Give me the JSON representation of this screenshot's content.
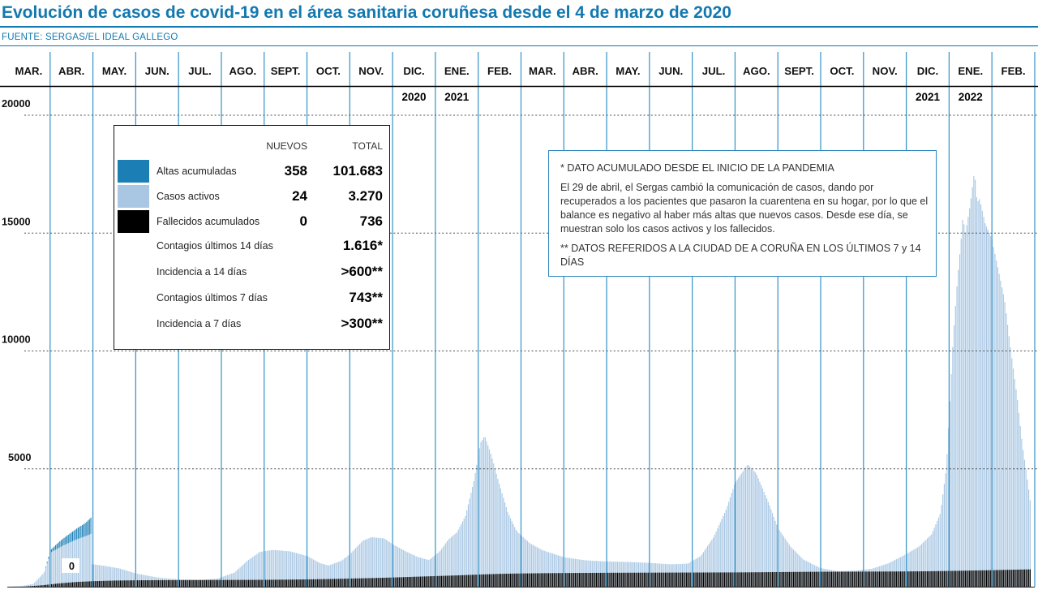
{
  "title": "Evolución de casos de covid-19 en el área sanitaria coruñesa desde el 4 de marzo de 2020",
  "source": "FUENTE: SERGAS/EL IDEAL GALLEGO",
  "colors": {
    "accent_blue": "#1278b0",
    "grid_blue": "#3a96c9",
    "bar_light": "#a9c7e3",
    "bar_dark": "#1b7fb5",
    "bar_black": "#000000",
    "dashed_gray": "#4d4d4d",
    "text_dark": "#111111"
  },
  "axis": {
    "months": [
      "MAR.",
      "ABR.",
      "MAY.",
      "JUN.",
      "JUL.",
      "AGO.",
      "SEPT.",
      "OCT.",
      "NOV.",
      "DIC.",
      "ENE.",
      "FEB.",
      "MAR.",
      "ABR.",
      "MAY.",
      "JUN.",
      "JUL.",
      "AGO.",
      "SEPT.",
      "OCT.",
      "NOV.",
      "DIC.",
      "ENE.",
      "FEB."
    ],
    "years": [
      {
        "label": "2020",
        "col": 9
      },
      {
        "label": "2021",
        "col": 10
      },
      {
        "label": "2021",
        "col": 21
      },
      {
        "label": "2022",
        "col": 22
      }
    ],
    "y_ticks": [
      20000,
      15000,
      10000,
      5000,
      0
    ]
  },
  "legend": {
    "headers": {
      "nuevos": "NUEVOS",
      "total": "TOTAL"
    },
    "items": [
      {
        "label": "Altas acumuladas",
        "swatch": "bar_dark",
        "nuevos": "358",
        "total": "101.683"
      },
      {
        "label": "Casos activos",
        "swatch": "bar_light",
        "nuevos": "24",
        "total": "3.270"
      },
      {
        "label": "Fallecidos acumulados",
        "swatch": "bar_black",
        "nuevos": "0",
        "total": "736"
      }
    ],
    "extra_rows": [
      {
        "label": "Contagios últimos 14 días",
        "value": "1.616*"
      },
      {
        "label": "Incidencia a 14 días",
        "value": ">600**"
      },
      {
        "label": "Contagios últimos 7 días",
        "value": "743**"
      },
      {
        "label": "Incidencia a 7 días",
        "value": ">300**"
      }
    ]
  },
  "note": {
    "line1": "* DATO ACUMULADO DESDE EL INICIO DE LA PANDEMIA",
    "paragraph": "El 29 de abril, el Sergas cambió la comunicación de casos, dando por recuperados a los pacientes que pasaron la cuarentena en su hogar, por lo que el balance es negativo al haber más altas que nuevos casos. Desde ese día, se muestran solo los casos activos y los fallecidos.",
    "line2": "** DATOS REFERIDOS A LA CIUDAD DE A CORUÑA EN LOS ÚLTIMOS 7 y 14 DÍAS"
  },
  "chart_data": {
    "type": "bar",
    "title": "Evolución de casos de covid-19 en el área sanitaria coruñesa desde el 4 de marzo de 2020",
    "x_unit": "días (MAR. 2020 - FEB. 2022, un bar por día)",
    "ylim": [
      0,
      21000
    ],
    "y_ticks": [
      20000,
      15000,
      10000,
      5000,
      0
    ],
    "grid": "dashed-horizontal, solid-vertical-monthly",
    "series": [
      {
        "name": "Casos activos",
        "color_key": "bar_light",
        "keyframes_month_value": [
          [
            0,
            0
          ],
          [
            0.3,
            20
          ],
          [
            0.6,
            120
          ],
          [
            0.85,
            600
          ],
          [
            1,
            1450
          ],
          [
            1.3,
            1750
          ],
          [
            1.6,
            2000
          ],
          [
            1.9,
            2200
          ],
          [
            1.96,
            2260
          ],
          [
            1.97,
            960
          ],
          [
            2.3,
            870
          ],
          [
            2.6,
            780
          ],
          [
            3,
            560
          ],
          [
            3.5,
            390
          ],
          [
            4,
            310
          ],
          [
            4.5,
            295
          ],
          [
            4.9,
            340
          ],
          [
            5.3,
            600
          ],
          [
            5.6,
            1100
          ],
          [
            5.9,
            1480
          ],
          [
            6.2,
            1560
          ],
          [
            6.6,
            1500
          ],
          [
            7,
            1300
          ],
          [
            7.3,
            1000
          ],
          [
            7.5,
            900
          ],
          [
            7.8,
            1100
          ],
          [
            8,
            1380
          ],
          [
            8.3,
            1950
          ],
          [
            8.5,
            2100
          ],
          [
            8.8,
            2050
          ],
          [
            9,
            1800
          ],
          [
            9.3,
            1500
          ],
          [
            9.6,
            1250
          ],
          [
            9.85,
            1130
          ],
          [
            10.1,
            1500
          ],
          [
            10.3,
            2000
          ],
          [
            10.5,
            2300
          ],
          [
            10.7,
            3000
          ],
          [
            10.9,
            4500
          ],
          [
            11.05,
            6100
          ],
          [
            11.15,
            6400
          ],
          [
            11.3,
            5600
          ],
          [
            11.5,
            4300
          ],
          [
            11.7,
            3100
          ],
          [
            11.9,
            2350
          ],
          [
            12.2,
            1850
          ],
          [
            12.5,
            1550
          ],
          [
            13,
            1250
          ],
          [
            13.5,
            1120
          ],
          [
            14,
            1070
          ],
          [
            14.5,
            1050
          ],
          [
            15,
            1010
          ],
          [
            15.5,
            950
          ],
          [
            15.9,
            980
          ],
          [
            16.2,
            1300
          ],
          [
            16.5,
            2100
          ],
          [
            16.8,
            3300
          ],
          [
            17,
            4400
          ],
          [
            17.3,
            5190
          ],
          [
            17.5,
            4800
          ],
          [
            17.8,
            3500
          ],
          [
            18,
            2510
          ],
          [
            18.3,
            1700
          ],
          [
            18.6,
            1150
          ],
          [
            19,
            790
          ],
          [
            19.4,
            660
          ],
          [
            19.8,
            680
          ],
          [
            20.2,
            760
          ],
          [
            20.6,
            1000
          ],
          [
            21,
            1380
          ],
          [
            21.3,
            1700
          ],
          [
            21.6,
            2230
          ],
          [
            21.8,
            3100
          ],
          [
            21.94,
            5000
          ],
          [
            22,
            7000
          ],
          [
            22.1,
            10500
          ],
          [
            22.2,
            13000
          ],
          [
            22.3,
            15000
          ],
          [
            22.33,
            15800
          ],
          [
            22.38,
            14900
          ],
          [
            22.5,
            16200
          ],
          [
            22.6,
            17650
          ],
          [
            22.66,
            16300
          ],
          [
            22.72,
            16450
          ],
          [
            22.85,
            15400
          ],
          [
            23,
            14800
          ],
          [
            23.15,
            13500
          ],
          [
            23.3,
            12200
          ],
          [
            23.45,
            10000
          ],
          [
            23.6,
            8000
          ],
          [
            23.72,
            6000
          ],
          [
            23.8,
            5000
          ],
          [
            23.87,
            4100
          ],
          [
            23.93,
            3270
          ]
        ]
      },
      {
        "name": "Altas acumuladas (tramo abril 2020)",
        "color_key": "bar_dark",
        "stacked_on": "Casos activos",
        "keyframes_month_value": [
          [
            0.85,
            0
          ],
          [
            1.2,
            250
          ],
          [
            1.5,
            400
          ],
          [
            1.8,
            550
          ],
          [
            1.955,
            700
          ],
          [
            1.96,
            0
          ]
        ]
      },
      {
        "name": "Fallecidos acumulados",
        "color_key": "bar_black",
        "keyframes_month_value": [
          [
            0,
            0
          ],
          [
            0.4,
            5
          ],
          [
            0.8,
            60
          ],
          [
            1.2,
            140
          ],
          [
            1.6,
            200
          ],
          [
            2,
            235
          ],
          [
            2.5,
            260
          ],
          [
            3,
            272
          ],
          [
            4,
            280
          ],
          [
            5,
            286
          ],
          [
            6,
            292
          ],
          [
            6.5,
            300
          ],
          [
            7,
            310
          ],
          [
            7.5,
            325
          ],
          [
            8,
            345
          ],
          [
            8.5,
            365
          ],
          [
            9,
            390
          ],
          [
            9.5,
            420
          ],
          [
            10,
            450
          ],
          [
            10.5,
            480
          ],
          [
            11,
            515
          ],
          [
            11.5,
            545
          ],
          [
            12,
            562
          ],
          [
            12.5,
            572
          ],
          [
            13,
            580
          ],
          [
            14,
            590
          ],
          [
            15,
            596
          ],
          [
            16,
            601
          ],
          [
            17,
            606
          ],
          [
            17.5,
            612
          ],
          [
            18,
            620
          ],
          [
            18.5,
            628
          ],
          [
            19,
            634
          ],
          [
            20,
            640
          ],
          [
            21,
            648
          ],
          [
            21.5,
            655
          ],
          [
            22,
            668
          ],
          [
            22.5,
            685
          ],
          [
            23,
            700
          ],
          [
            23.5,
            720
          ],
          [
            23.93,
            736
          ]
        ]
      }
    ]
  }
}
